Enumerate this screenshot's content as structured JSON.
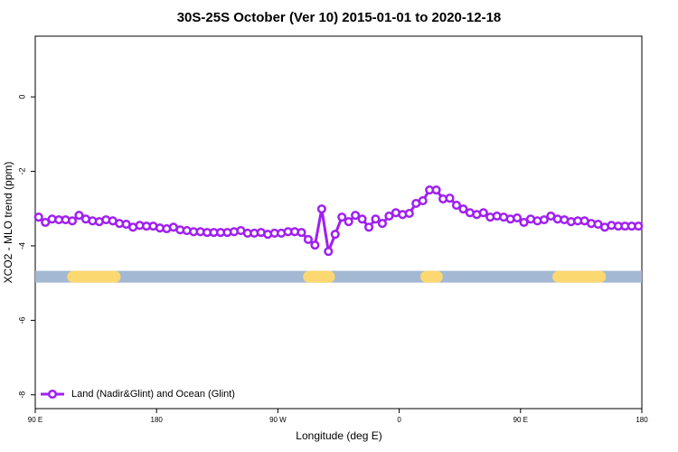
{
  "chart_data": {
    "type": "line",
    "title": "30S-25S October (Ver 10)   2015-01-01 to 2020-12-18",
    "x_label": "Longitude (deg E)",
    "y_label": "XCO2 - MLO trend (ppm)",
    "x": [
      92.5,
      97.5,
      102.5,
      107.5,
      112.5,
      117.5,
      122.5,
      127.5,
      132.5,
      137.5,
      142.5,
      147.5,
      152.5,
      157.5,
      162.5,
      167.5,
      172.5,
      177.5,
      182.5,
      187.5,
      192.5,
      197.5,
      202.5,
      207.5,
      212.5,
      217.5,
      222.5,
      227.5,
      232.5,
      237.5,
      242.5,
      247.5,
      252.5,
      257.5,
      262.5,
      267.5,
      272.5,
      277.5,
      282.5,
      287.5,
      292.5,
      297.5,
      302.5,
      307.5,
      312.5,
      317.5,
      322.5,
      327.5,
      332.5,
      337.5,
      342.5,
      347.5,
      352.5,
      357.5,
      362.5,
      367.5,
      372.5,
      377.5,
      382.5,
      387.5,
      392.5,
      397.5,
      402.5,
      407.5,
      412.5,
      417.5,
      422.5,
      427.5,
      432.5,
      437.5,
      442.5,
      447.5,
      452.5,
      457.5,
      462.5,
      467.5,
      472.5,
      477.5,
      482.5,
      487.5,
      492.5,
      497.5,
      502.5,
      507.5,
      512.5,
      517.5,
      522.5,
      527.5,
      532.5,
      537.5
    ],
    "series": [
      {
        "name": "Land (Nadir&Glint) and Ocean (Glint)",
        "color": "#a020f0",
        "values": [
          -3.23,
          -3.37,
          -3.28,
          -3.3,
          -3.3,
          -3.33,
          -3.18,
          -3.28,
          -3.33,
          -3.35,
          -3.3,
          -3.33,
          -3.4,
          -3.42,
          -3.5,
          -3.45,
          -3.47,
          -3.47,
          -3.52,
          -3.54,
          -3.5,
          -3.57,
          -3.59,
          -3.62,
          -3.62,
          -3.64,
          -3.64,
          -3.64,
          -3.64,
          -3.62,
          -3.59,
          -3.66,
          -3.66,
          -3.64,
          -3.69,
          -3.66,
          -3.66,
          -3.62,
          -3.62,
          -3.64,
          -3.83,
          -3.98,
          -3.01,
          -4.15,
          -3.69,
          -3.23,
          -3.35,
          -3.18,
          -3.28,
          -3.5,
          -3.28,
          -3.4,
          -3.2,
          -3.11,
          -3.16,
          -3.13,
          -2.86,
          -2.79,
          -2.5,
          -2.5,
          -2.74,
          -2.72,
          -2.91,
          -3.01,
          -3.11,
          -3.16,
          -3.11,
          -3.23,
          -3.2,
          -3.23,
          -3.28,
          -3.25,
          -3.37,
          -3.28,
          -3.33,
          -3.3,
          -3.2,
          -3.28,
          -3.3,
          -3.35,
          -3.33,
          -3.33,
          -3.4,
          -3.42,
          -3.5,
          -3.45,
          -3.47,
          -3.47,
          -3.47,
          -3.47
        ]
      }
    ],
    "surface_band": {
      "level": -4.83,
      "ocean_color": "#a3b8d3",
      "land_color": "#fcd870",
      "land_segments": [
        [
          114,
          153
        ],
        [
          289,
          312
        ],
        [
          376,
          392
        ],
        [
          474,
          513
        ]
      ]
    },
    "xlim": [
      90,
      540
    ],
    "ylim": [
      -8.37,
      1.63
    ],
    "xticks": [
      {
        "value": 90,
        "label": "90 E"
      },
      180,
      {
        "value": 270,
        "label": "90 W"
      },
      {
        "value": 360,
        "label": "0"
      },
      {
        "value": 450,
        "label": "90 E"
      },
      {
        "value": 540,
        "label": "180"
      }
    ],
    "yticks": [
      0,
      -2,
      -4,
      -6,
      -8
    ],
    "legend": "bottom-left"
  }
}
